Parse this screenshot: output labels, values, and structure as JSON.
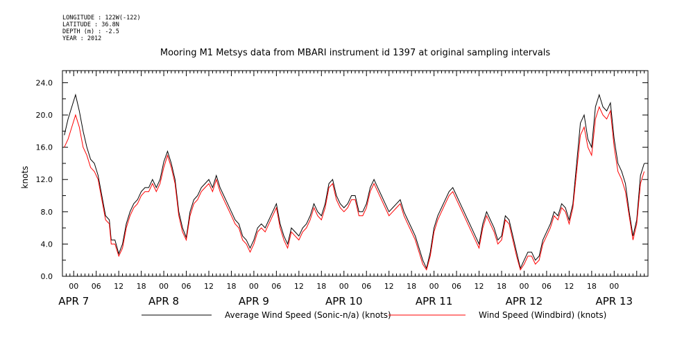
{
  "header": {
    "meta_lines": [
      "LONGITUDE : 122W(-122)",
      "LATITUDE : 36.8N",
      "DEPTH (m) : -2.5",
      "YEAR : 2012"
    ]
  },
  "chart_data": {
    "type": "line",
    "title": "Mooring M1 Metsys data from MBARI instrument id 1397 at original sampling intervals",
    "ylabel": "knots",
    "xlabel": "",
    "ylim": [
      0,
      25.5
    ],
    "xlim_hours": [
      -3,
      153
    ],
    "y_ticks": [
      "0.0",
      "4.0",
      "8.0",
      "12.0",
      "16.0",
      "20.0",
      "24.0"
    ],
    "x_hour_ticks": [
      "00",
      "06",
      "12",
      "18",
      "00",
      "06",
      "12",
      "18",
      "00",
      "06",
      "12",
      "18",
      "00",
      "06",
      "12",
      "18",
      "00",
      "06",
      "12",
      "18",
      "00",
      "06",
      "12",
      "18",
      "00"
    ],
    "day_labels": [
      "APR  7",
      "APR  8",
      "APR  9",
      "APR 10",
      "APR 11",
      "APR 12",
      "APR 13"
    ],
    "grid": false,
    "legend_position": "bottom",
    "colors": {
      "black_series": "#000000",
      "red_series": "#ff0000",
      "axis": "#000000"
    },
    "x_unit": "hours from APR 7 00",
    "series": [
      {
        "name": "Average Wind Speed (Sonic-n/a) (knots)",
        "color": "#000000",
        "points": [
          [
            -2.5,
            17.5
          ],
          [
            -1.5,
            19.5
          ],
          [
            -0.5,
            21
          ],
          [
            0.5,
            22.5
          ],
          [
            1.5,
            20.5
          ],
          [
            2.5,
            18
          ],
          [
            3.5,
            16
          ],
          [
            4.5,
            14.5
          ],
          [
            5.5,
            14
          ],
          [
            6.5,
            12.5
          ],
          [
            7.5,
            10
          ],
          [
            8.5,
            7.5
          ],
          [
            9.5,
            7
          ],
          [
            10,
            4.5
          ],
          [
            11,
            4.5
          ],
          [
            12,
            2.8
          ],
          [
            13,
            4
          ],
          [
            14,
            6.5
          ],
          [
            15,
            8
          ],
          [
            16,
            9
          ],
          [
            17,
            9.5
          ],
          [
            18,
            10.5
          ],
          [
            19,
            11
          ],
          [
            20,
            11
          ],
          [
            21,
            12
          ],
          [
            22,
            11
          ],
          [
            23,
            12
          ],
          [
            24,
            14.2
          ],
          [
            25,
            15.5
          ],
          [
            26,
            14
          ],
          [
            27,
            12
          ],
          [
            28,
            8
          ],
          [
            29,
            6
          ],
          [
            30,
            4.8
          ],
          [
            31,
            8
          ],
          [
            32,
            9.5
          ],
          [
            33,
            10
          ],
          [
            34,
            11
          ],
          [
            35,
            11.5
          ],
          [
            36,
            12
          ],
          [
            37,
            11
          ],
          [
            38,
            12.5
          ],
          [
            39,
            11
          ],
          [
            40,
            10
          ],
          [
            41,
            9
          ],
          [
            42,
            8
          ],
          [
            43,
            7
          ],
          [
            44,
            6.5
          ],
          [
            45,
            5
          ],
          [
            46,
            4.5
          ],
          [
            47,
            3.5
          ],
          [
            48,
            4.5
          ],
          [
            49,
            6
          ],
          [
            50,
            6.5
          ],
          [
            51,
            6
          ],
          [
            52,
            7
          ],
          [
            53,
            8
          ],
          [
            54,
            9
          ],
          [
            55,
            6.5
          ],
          [
            56,
            5
          ],
          [
            57,
            4
          ],
          [
            58,
            6
          ],
          [
            59,
            5.5
          ],
          [
            60,
            5
          ],
          [
            61,
            6
          ],
          [
            62,
            6.5
          ],
          [
            63,
            7.5
          ],
          [
            64,
            9
          ],
          [
            65,
            8
          ],
          [
            66,
            7.5
          ],
          [
            67,
            9
          ],
          [
            68,
            11.5
          ],
          [
            69,
            12
          ],
          [
            70,
            10
          ],
          [
            71,
            9
          ],
          [
            72,
            8.5
          ],
          [
            73,
            9
          ],
          [
            74,
            10
          ],
          [
            75,
            10
          ],
          [
            76,
            8
          ],
          [
            77,
            8
          ],
          [
            78,
            9
          ],
          [
            79,
            11
          ],
          [
            80,
            12
          ],
          [
            81,
            11
          ],
          [
            82,
            10
          ],
          [
            83,
            9
          ],
          [
            84,
            8
          ],
          [
            85,
            8.5
          ],
          [
            86,
            9
          ],
          [
            87,
            9.5
          ],
          [
            88,
            8
          ],
          [
            89,
            7
          ],
          [
            90,
            6
          ],
          [
            91,
            5
          ],
          [
            92,
            3.5
          ],
          [
            93,
            2
          ],
          [
            94,
            1
          ],
          [
            95,
            3
          ],
          [
            96,
            6
          ],
          [
            97,
            7.5
          ],
          [
            98,
            8.5
          ],
          [
            99,
            9.5
          ],
          [
            100,
            10.5
          ],
          [
            101,
            11
          ],
          [
            102,
            10
          ],
          [
            103,
            9
          ],
          [
            104,
            8
          ],
          [
            105,
            7
          ],
          [
            106,
            6
          ],
          [
            107,
            5
          ],
          [
            108,
            4
          ],
          [
            109,
            6.5
          ],
          [
            110,
            8
          ],
          [
            111,
            7
          ],
          [
            112,
            6
          ],
          [
            113,
            4.5
          ],
          [
            114,
            5
          ],
          [
            115,
            7.5
          ],
          [
            116,
            7
          ],
          [
            117,
            5
          ],
          [
            118,
            3
          ],
          [
            119,
            1
          ],
          [
            120,
            2
          ],
          [
            121,
            3
          ],
          [
            122,
            3
          ],
          [
            123,
            2
          ],
          [
            124,
            2.5
          ],
          [
            125,
            4.5
          ],
          [
            126,
            5.5
          ],
          [
            127,
            6.5
          ],
          [
            128,
            8
          ],
          [
            129,
            7.5
          ],
          [
            130,
            9
          ],
          [
            131,
            8.5
          ],
          [
            132,
            7
          ],
          [
            133,
            9
          ],
          [
            134,
            14
          ],
          [
            135,
            19
          ],
          [
            136,
            20
          ],
          [
            137,
            17
          ],
          [
            138,
            16
          ],
          [
            139,
            21
          ],
          [
            140,
            22.5
          ],
          [
            141,
            21
          ],
          [
            142,
            20.5
          ],
          [
            143,
            21.5
          ],
          [
            144,
            17
          ],
          [
            145,
            14
          ],
          [
            146,
            13
          ],
          [
            147,
            11.5
          ],
          [
            148,
            8
          ],
          [
            149,
            5
          ],
          [
            150,
            7
          ],
          [
            151,
            12.5
          ],
          [
            152,
            14
          ]
        ]
      },
      {
        "name": "Wind Speed (Windbird) (knots)",
        "color": "#ff0000",
        "points": [
          [
            -2.5,
            16
          ],
          [
            -1.5,
            17
          ],
          [
            -0.5,
            18.5
          ],
          [
            0.5,
            20
          ],
          [
            1.5,
            18.5
          ],
          [
            2.5,
            16
          ],
          [
            3.5,
            15
          ],
          [
            4.5,
            13.5
          ],
          [
            5.5,
            13
          ],
          [
            6.5,
            12
          ],
          [
            7.5,
            9.5
          ],
          [
            8.5,
            7
          ],
          [
            9.5,
            6.5
          ],
          [
            10,
            4
          ],
          [
            11,
            4
          ],
          [
            12,
            2.5
          ],
          [
            13,
            3.5
          ],
          [
            14,
            6
          ],
          [
            15,
            7.5
          ],
          [
            16,
            8.5
          ],
          [
            17,
            9
          ],
          [
            18,
            10
          ],
          [
            19,
            10.5
          ],
          [
            20,
            10.5
          ],
          [
            21,
            11.5
          ],
          [
            22,
            10.5
          ],
          [
            23,
            11.5
          ],
          [
            24,
            13.5
          ],
          [
            25,
            15
          ],
          [
            26,
            13.5
          ],
          [
            27,
            11.5
          ],
          [
            28,
            7.5
          ],
          [
            29,
            5.5
          ],
          [
            30,
            4.5
          ],
          [
            31,
            7.5
          ],
          [
            32,
            9
          ],
          [
            33,
            9.5
          ],
          [
            34,
            10.5
          ],
          [
            35,
            11
          ],
          [
            36,
            11.5
          ],
          [
            37,
            10.5
          ],
          [
            38,
            12
          ],
          [
            39,
            10.5
          ],
          [
            40,
            9.5
          ],
          [
            41,
            8.5
          ],
          [
            42,
            7.5
          ],
          [
            43,
            6.5
          ],
          [
            44,
            6
          ],
          [
            45,
            4.5
          ],
          [
            46,
            4
          ],
          [
            47,
            3
          ],
          [
            48,
            4
          ],
          [
            49,
            5.5
          ],
          [
            50,
            6
          ],
          [
            51,
            5.5
          ],
          [
            52,
            6.5
          ],
          [
            53,
            7.5
          ],
          [
            54,
            8.5
          ],
          [
            55,
            6
          ],
          [
            56,
            4.5
          ],
          [
            57,
            3.5
          ],
          [
            58,
            5.5
          ],
          [
            59,
            5
          ],
          [
            60,
            4.5
          ],
          [
            61,
            5.5
          ],
          [
            62,
            6
          ],
          [
            63,
            7
          ],
          [
            64,
            8.5
          ],
          [
            65,
            7.5
          ],
          [
            66,
            7
          ],
          [
            67,
            8.5
          ],
          [
            68,
            11
          ],
          [
            69,
            11.5
          ],
          [
            70,
            9.5
          ],
          [
            71,
            8.5
          ],
          [
            72,
            8
          ],
          [
            73,
            8.5
          ],
          [
            74,
            9.5
          ],
          [
            75,
            9.5
          ],
          [
            76,
            7.5
          ],
          [
            77,
            7.5
          ],
          [
            78,
            8.5
          ],
          [
            79,
            10.5
          ],
          [
            80,
            11.5
          ],
          [
            81,
            10.5
          ],
          [
            82,
            9.5
          ],
          [
            83,
            8.5
          ],
          [
            84,
            7.5
          ],
          [
            85,
            8
          ],
          [
            86,
            8.5
          ],
          [
            87,
            9
          ],
          [
            88,
            7.5
          ],
          [
            89,
            6.5
          ],
          [
            90,
            5.5
          ],
          [
            91,
            4.5
          ],
          [
            92,
            3
          ],
          [
            93,
            1.5
          ],
          [
            94,
            0.8
          ],
          [
            95,
            2.5
          ],
          [
            96,
            5.5
          ],
          [
            97,
            7
          ],
          [
            98,
            8
          ],
          [
            99,
            9
          ],
          [
            100,
            10
          ],
          [
            101,
            10.5
          ],
          [
            102,
            9.5
          ],
          [
            103,
            8.5
          ],
          [
            104,
            7.5
          ],
          [
            105,
            6.5
          ],
          [
            106,
            5.5
          ],
          [
            107,
            4.5
          ],
          [
            108,
            3.5
          ],
          [
            109,
            6
          ],
          [
            110,
            7.5
          ],
          [
            111,
            6.5
          ],
          [
            112,
            5.5
          ],
          [
            113,
            4
          ],
          [
            114,
            4.5
          ],
          [
            115,
            7
          ],
          [
            116,
            6.5
          ],
          [
            117,
            4.5
          ],
          [
            118,
            2.5
          ],
          [
            119,
            0.8
          ],
          [
            120,
            1.5
          ],
          [
            121,
            2.5
          ],
          [
            122,
            2.5
          ],
          [
            123,
            1.5
          ],
          [
            124,
            2
          ],
          [
            125,
            4
          ],
          [
            126,
            5
          ],
          [
            127,
            6
          ],
          [
            128,
            7.5
          ],
          [
            129,
            7
          ],
          [
            130,
            8.5
          ],
          [
            131,
            8
          ],
          [
            132,
            6.5
          ],
          [
            133,
            8.5
          ],
          [
            134,
            13
          ],
          [
            135,
            17.5
          ],
          [
            136,
            18.5
          ],
          [
            137,
            16
          ],
          [
            138,
            15
          ],
          [
            139,
            19.5
          ],
          [
            140,
            21
          ],
          [
            141,
            20
          ],
          [
            142,
            19.5
          ],
          [
            143,
            20.5
          ],
          [
            144,
            16
          ],
          [
            145,
            13
          ],
          [
            146,
            12
          ],
          [
            147,
            10.5
          ],
          [
            148,
            7.5
          ],
          [
            149,
            4.5
          ],
          [
            150,
            6.5
          ],
          [
            151,
            11.5
          ],
          [
            152,
            13
          ]
        ]
      }
    ]
  }
}
